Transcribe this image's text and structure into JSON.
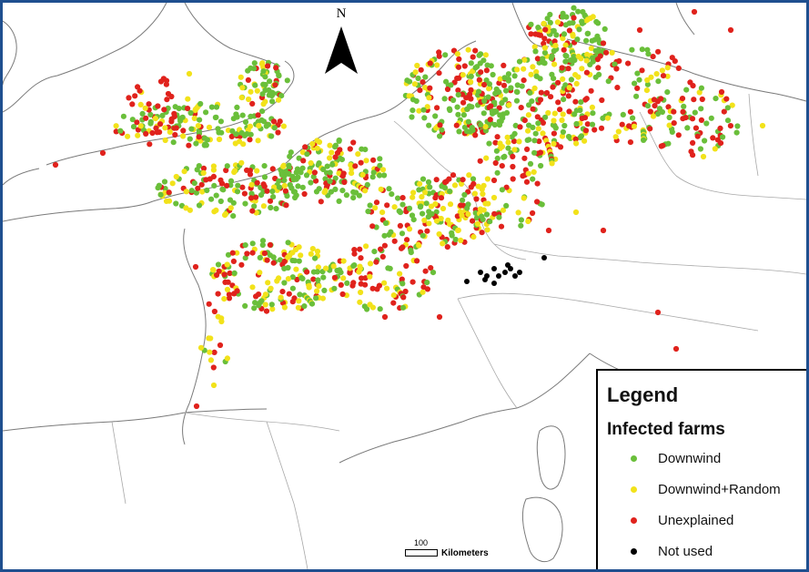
{
  "map": {
    "north_label": "N",
    "scale_bar": {
      "value": "100",
      "unit": "Kilometers"
    },
    "colors": {
      "frame": "#1f4f8f",
      "coastline": "#7a7a7a",
      "border": "#a8a8a8",
      "downwind": "#6abf3a",
      "downwind_random": "#f2e21a",
      "unexplained": "#e0221c",
      "not_used": "#000000"
    },
    "icons": [
      "north-arrow-icon",
      "scale-bar-icon"
    ]
  },
  "legend": {
    "title": "Legend",
    "subtitle": "Infected farms",
    "items": [
      {
        "label": "Downwind",
        "color": "#6abf3a"
      },
      {
        "label": "Downwind+Random",
        "color": "#f2e21a"
      },
      {
        "label": "Unexplained",
        "color": "#e0221c"
      },
      {
        "label": "Not used",
        "color": "#000000"
      }
    ]
  }
}
